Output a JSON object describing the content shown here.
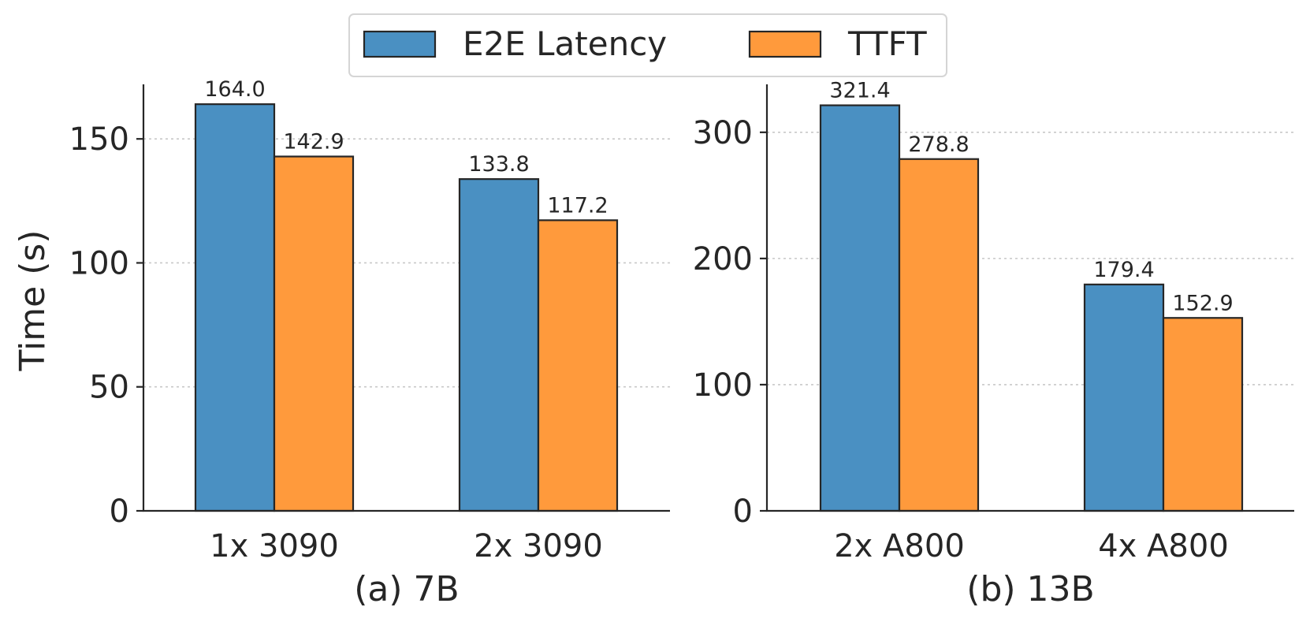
{
  "chart_data": {
    "type": "bar",
    "ylabel": "Time (s)",
    "legend": {
      "placement": "top-center",
      "entries": [
        {
          "name": "E2E Latency",
          "color": "#4a90c2"
        },
        {
          "name": "TTFT",
          "color": "#ff9a3c"
        }
      ]
    },
    "panels": [
      {
        "id": "a",
        "title": "(a) 7B",
        "categories": [
          "1x 3090",
          "2x 3090"
        ],
        "series": [
          {
            "name": "E2E Latency",
            "values": [
              164.0,
              133.8
            ],
            "labels": [
              "164.0",
              "133.8"
            ]
          },
          {
            "name": "TTFT",
            "values": [
              142.9,
              117.2
            ],
            "labels": [
              "142.9",
              "117.2"
            ]
          }
        ],
        "ylim": [
          0,
          172
        ],
        "yticks": [
          0,
          50,
          100,
          150
        ],
        "grid": true
      },
      {
        "id": "b",
        "title": "(b) 13B",
        "categories": [
          "2x A800",
          "4x A800"
        ],
        "series": [
          {
            "name": "E2E Latency",
            "values": [
              321.4,
              179.4
            ],
            "labels": [
              "321.4",
              "179.4"
            ]
          },
          {
            "name": "TTFT",
            "values": [
              278.8,
              152.9
            ],
            "labels": [
              "278.8",
              "152.9"
            ]
          }
        ],
        "ylim": [
          0,
          338
        ],
        "yticks": [
          0,
          100,
          200,
          300
        ],
        "grid": true
      }
    ]
  }
}
